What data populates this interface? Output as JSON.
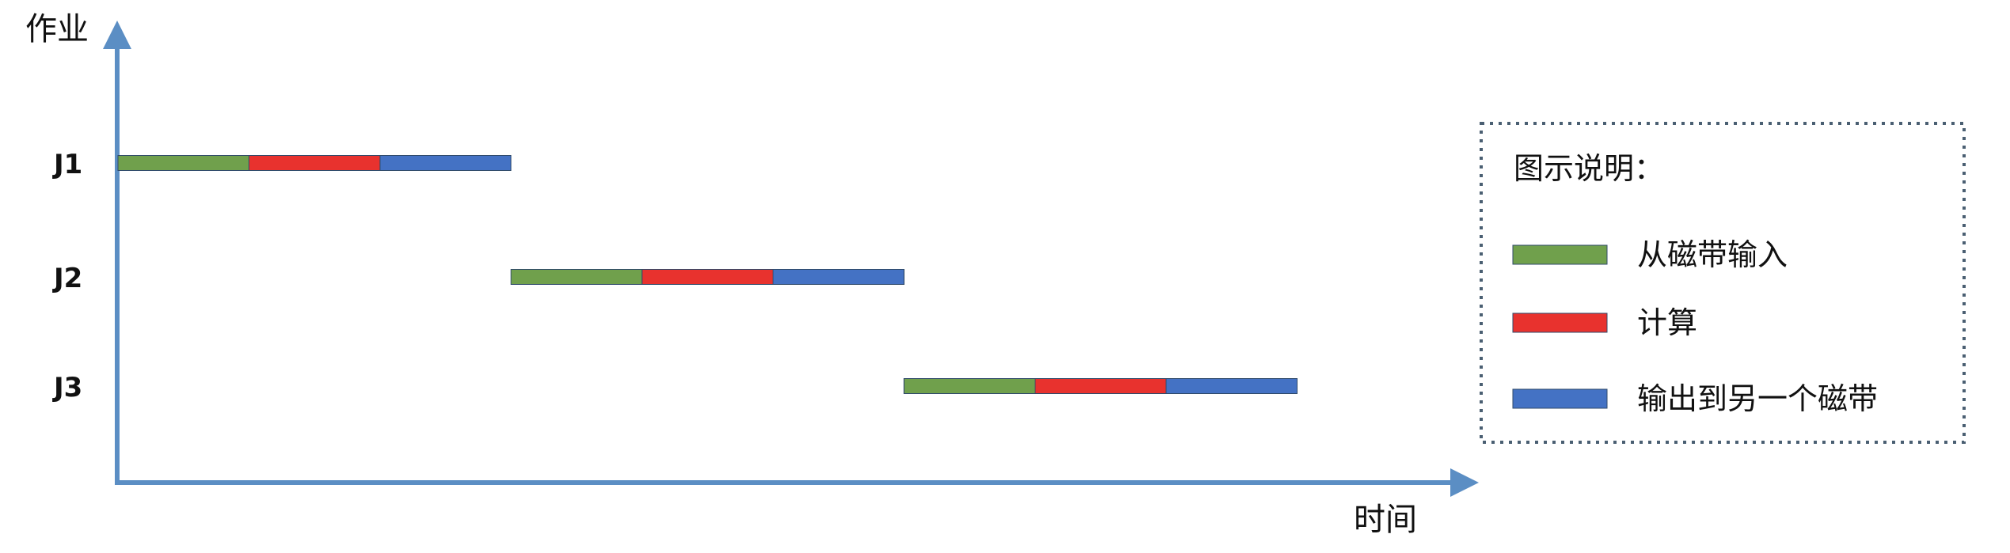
{
  "axes": {
    "y_title": "作业",
    "x_title": "时间",
    "axis_color": "#5b8ec4"
  },
  "jobs": [
    {
      "label": "J1",
      "phases": [
        {
          "phase": "input",
          "start": 0,
          "end": 1
        },
        {
          "phase": "compute",
          "start": 1,
          "end": 2
        },
        {
          "phase": "output",
          "start": 2,
          "end": 3
        }
      ]
    },
    {
      "label": "J2",
      "phases": [
        {
          "phase": "input",
          "start": 3,
          "end": 4
        },
        {
          "phase": "compute",
          "start": 4,
          "end": 5
        },
        {
          "phase": "output",
          "start": 5,
          "end": 6
        }
      ]
    },
    {
      "label": "J3",
      "phases": [
        {
          "phase": "input",
          "start": 6,
          "end": 7
        },
        {
          "phase": "compute",
          "start": 7,
          "end": 8
        },
        {
          "phase": "output",
          "start": 8,
          "end": 9
        }
      ]
    }
  ],
  "phase_colors": {
    "input": "#70a04c",
    "compute": "#e8322e",
    "output": "#4472c4"
  },
  "legend": {
    "title": "图示说明：",
    "items": [
      {
        "phase": "input",
        "label": "从磁带输入"
      },
      {
        "phase": "compute",
        "label": "计算"
      },
      {
        "phase": "output",
        "label": "输出到另一个磁带"
      }
    ]
  }
}
